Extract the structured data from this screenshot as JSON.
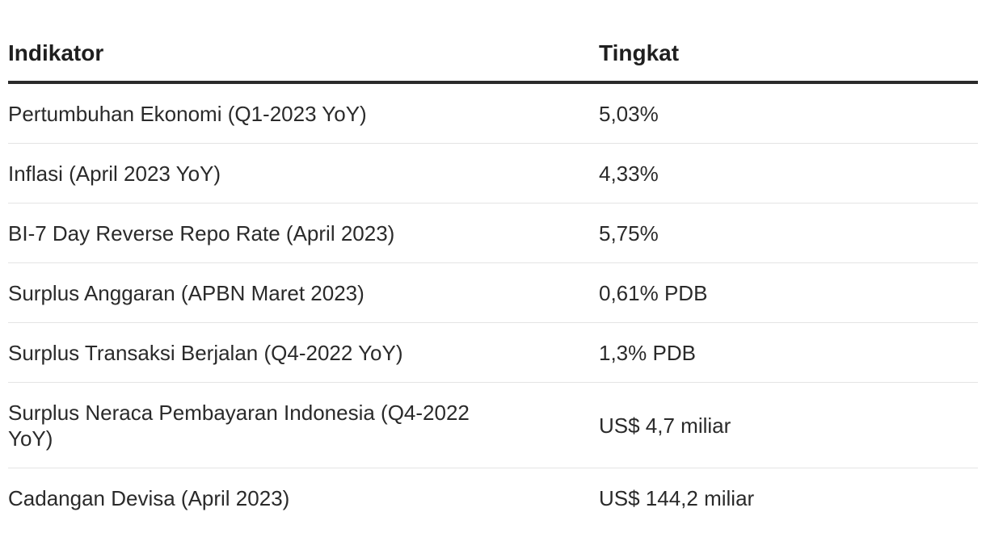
{
  "table": {
    "headers": {
      "indicator": "Indikator",
      "rate": "Tingkat"
    },
    "rows": [
      {
        "indicator": "Pertumbuhan Ekonomi (Q1-2023 YoY)",
        "rate": "5,03%"
      },
      {
        "indicator": "Inflasi (April 2023 YoY)",
        "rate": "4,33%"
      },
      {
        "indicator": "BI-7 Day Reverse Repo Rate (April 2023)",
        "rate": "5,75%"
      },
      {
        "indicator": "Surplus Anggaran (APBN Maret 2023)",
        "rate": "0,61% PDB"
      },
      {
        "indicator": "Surplus Transaksi Berjalan (Q4-2022 YoY)",
        "rate": "1,3% PDB"
      },
      {
        "indicator": "Surplus Neraca Pembayaran Indonesia (Q4-2022 YoY)",
        "rate": "US$ 4,7 miliar"
      },
      {
        "indicator": "Cadangan Devisa (April 2023)",
        "rate": "US$ 144,2 miliar"
      }
    ]
  }
}
